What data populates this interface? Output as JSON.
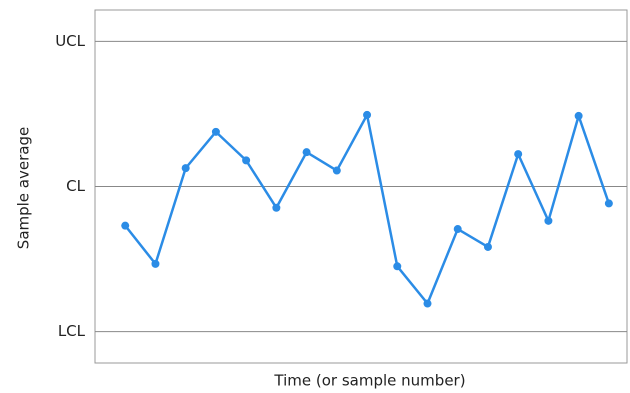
{
  "chart_data": {
    "type": "line",
    "xlabel": "Time (or sample number)",
    "ylabel": "Sample average",
    "x": [
      1,
      2,
      3,
      4,
      5,
      6,
      7,
      8,
      9,
      10,
      11,
      12,
      13,
      14,
      15,
      16,
      17
    ],
    "series": [
      {
        "color": "#2b8ce6",
        "values": [
          -0.81,
          -1.6,
          0.38,
          1.13,
          0.54,
          -0.44,
          0.71,
          0.33,
          1.48,
          -1.65,
          -2.42,
          -0.88,
          -1.25,
          0.67,
          -0.71,
          1.46,
          -0.35
        ]
      }
    ],
    "xlim": [
      0,
      17.6
    ],
    "ylim": [
      -3.65,
      3.65
    ],
    "yticks": [
      {
        "value": 3,
        "label": "UCL"
      },
      {
        "value": 0,
        "label": "CL"
      },
      {
        "value": -3,
        "label": "LCL"
      }
    ],
    "grid": true
  }
}
